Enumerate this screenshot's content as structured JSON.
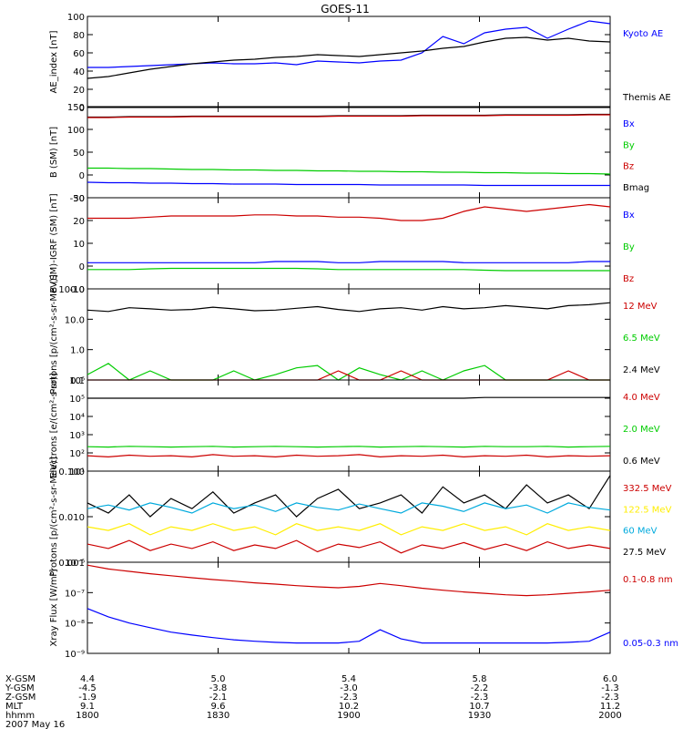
{
  "title": "GOES-11",
  "chart_data": [
    {
      "type": "line",
      "ylabel": "AE_index [nT]",
      "ylim": [
        0,
        100
      ],
      "yticks": [
        "0",
        "20",
        "40",
        "60",
        "80",
        "100"
      ],
      "legend": [
        {
          "name": "Kyoto AE",
          "color": "#0000ff"
        },
        {
          "name": "Themis AE",
          "color": "#000000"
        }
      ],
      "series": [
        {
          "name": "Kyoto AE",
          "color": "#0000ff",
          "values": [
            44,
            44,
            45,
            46,
            47,
            48,
            49,
            48,
            48,
            49,
            47,
            51,
            50,
            49,
            51,
            52,
            60,
            78,
            70,
            82,
            86,
            88,
            76,
            86,
            95,
            92
          ]
        },
        {
          "name": "Themis AE",
          "color": "#000000",
          "values": [
            32,
            34,
            38,
            42,
            45,
            48,
            50,
            52,
            53,
            55,
            56,
            58,
            57,
            56,
            58,
            60,
            62,
            65,
            67,
            72,
            76,
            77,
            74,
            76,
            73,
            72
          ]
        }
      ]
    },
    {
      "type": "line",
      "ylabel": "B (SM) [nT]",
      "ylim": [
        -50,
        150
      ],
      "yticks": [
        "-50",
        "0",
        "50",
        "100",
        "150"
      ],
      "legend": [
        {
          "name": "Bx",
          "color": "#0000ff"
        },
        {
          "name": "By",
          "color": "#00cc00"
        },
        {
          "name": "Bz",
          "color": "#cc0000"
        },
        {
          "name": "Bmag",
          "color": "#000000"
        }
      ],
      "series": [
        {
          "name": "Bmag",
          "color": "#000000",
          "values": [
            127,
            127,
            128,
            128,
            128,
            129,
            129,
            129,
            129,
            129,
            129,
            129,
            130,
            130,
            130,
            130,
            131,
            131,
            131,
            131,
            132,
            132,
            132,
            132,
            133,
            133
          ]
        },
        {
          "name": "Bz",
          "color": "#cc0000",
          "values": [
            126,
            126,
            127,
            127,
            127,
            128,
            128,
            128,
            128,
            128,
            128,
            128,
            129,
            129,
            129,
            129,
            130,
            130,
            130,
            130,
            131,
            131,
            131,
            131,
            132,
            132
          ]
        },
        {
          "name": "By",
          "color": "#00cc00",
          "values": [
            15,
            15,
            14,
            14,
            13,
            12,
            12,
            11,
            11,
            10,
            10,
            9,
            9,
            8,
            8,
            7,
            7,
            6,
            6,
            5,
            5,
            4,
            4,
            3,
            3,
            2
          ]
        },
        {
          "name": "Bx",
          "color": "#0000ff",
          "values": [
            -16,
            -17,
            -17,
            -18,
            -18,
            -19,
            -19,
            -20,
            -20,
            -20,
            -21,
            -21,
            -21,
            -21,
            -22,
            -22,
            -22,
            -22,
            -22,
            -23,
            -23,
            -23,
            -23,
            -23,
            -23,
            -23
          ]
        }
      ]
    },
    {
      "type": "line",
      "ylabel": "B (SM)-IGRF (SM) [nT]",
      "ylim": [
        -10,
        30
      ],
      "yticks": [
        "-10",
        "0",
        "10",
        "20",
        "30"
      ],
      "legend": [
        {
          "name": "Bx",
          "color": "#0000ff"
        },
        {
          "name": "By",
          "color": "#00cc00"
        },
        {
          "name": "Bz",
          "color": "#cc0000"
        }
      ],
      "series": [
        {
          "name": "Bz",
          "color": "#cc0000",
          "values": [
            21,
            21,
            21,
            21.5,
            22,
            22,
            22,
            22,
            22.5,
            22.5,
            22,
            22,
            21.5,
            21.5,
            21,
            20,
            20,
            21,
            24,
            26,
            25,
            24,
            25,
            26,
            27,
            26
          ]
        },
        {
          "name": "Bx",
          "color": "#0000ff",
          "values": [
            1.5,
            1.5,
            1.5,
            1.5,
            1.5,
            1.5,
            1.5,
            1.5,
            1.5,
            2,
            2,
            2,
            1.5,
            1.5,
            2,
            2,
            2,
            2,
            1.5,
            1.5,
            1.5,
            1.5,
            1.5,
            1.5,
            2,
            2
          ]
        },
        {
          "name": "By",
          "color": "#00cc00",
          "values": [
            -1.5,
            -1.5,
            -1.5,
            -1.2,
            -1,
            -1,
            -1,
            -1,
            -1,
            -1,
            -1,
            -1.2,
            -1.5,
            -1.5,
            -1.5,
            -1.5,
            -1.5,
            -1.5,
            -1.5,
            -1.8,
            -2,
            -2,
            -2,
            -2,
            -2,
            -2
          ]
        }
      ]
    },
    {
      "type": "line",
      "scale": "log",
      "ylabel": "Protons [p/(cm²-s-sr-MeV)]",
      "ylim": [
        0.1,
        100
      ],
      "yticks": [
        "0.1",
        "1.0",
        "10.0",
        "100.0"
      ],
      "legend": [
        {
          "name": "12 MeV",
          "color": "#cc0000"
        },
        {
          "name": "6.5 MeV",
          "color": "#00cc00"
        },
        {
          "name": "2.4 MeV",
          "color": "#000000"
        }
      ],
      "series": [
        {
          "name": "2.4 MeV",
          "color": "#000000",
          "values": [
            20,
            18,
            24,
            22,
            20,
            21,
            25,
            22,
            19,
            20,
            23,
            26,
            21,
            18,
            22,
            24,
            20,
            26,
            22,
            24,
            28,
            25,
            22,
            28,
            30,
            35
          ]
        },
        {
          "name": "6.5 MeV",
          "color": "#00cc00",
          "values": [
            0.15,
            0.35,
            0.1,
            0.2,
            0.1,
            0.1,
            0.1,
            0.2,
            0.1,
            0.15,
            0.25,
            0.3,
            0.1,
            0.25,
            0.15,
            0.1,
            0.2,
            0.1,
            0.2,
            0.3,
            0.1,
            0.1,
            0.1,
            0.1,
            0.1,
            0.1
          ]
        },
        {
          "name": "12 MeV",
          "color": "#cc0000",
          "values": [
            0.1,
            0.1,
            0.1,
            0.1,
            0.1,
            0.1,
            0.1,
            0.1,
            0.1,
            0.1,
            0.1,
            0.1,
            0.2,
            0.1,
            0.1,
            0.2,
            0.1,
            0.1,
            0.1,
            0.1,
            0.1,
            0.1,
            0.1,
            0.2,
            0.1,
            0.1
          ]
        }
      ]
    },
    {
      "type": "line",
      "scale": "log",
      "ylabel": "Electrons [e/(cm²-s-sr)]",
      "ylim": [
        10,
        1000000
      ],
      "yticks": [
        "10¹",
        "10²",
        "10³",
        "10⁴",
        "10⁵",
        "10⁶"
      ],
      "legend": [
        {
          "name": "4.0 MeV",
          "color": "#cc0000"
        },
        {
          "name": "2.0 MeV",
          "color": "#00cc00"
        },
        {
          "name": "0.6 MeV",
          "color": "#000000"
        }
      ],
      "series": [
        {
          "name": "0.6 MeV",
          "color": "#000000",
          "values": [
            100000,
            100000,
            100000,
            100000,
            100000,
            100000,
            100000,
            100000,
            100000,
            100000,
            100000,
            100000,
            100000,
            100000,
            100000,
            100000,
            100000,
            100000,
            100000,
            110000,
            110000,
            110000,
            110000,
            110000,
            110000,
            110000
          ]
        },
        {
          "name": "2.0 MeV",
          "color": "#00cc00",
          "values": [
            220,
            210,
            230,
            220,
            210,
            220,
            230,
            210,
            220,
            230,
            220,
            210,
            220,
            230,
            210,
            220,
            230,
            220,
            210,
            230,
            220,
            220,
            230,
            210,
            220,
            230
          ]
        },
        {
          "name": "4.0 MeV",
          "color": "#cc0000",
          "values": [
            70,
            60,
            75,
            65,
            70,
            60,
            80,
            65,
            70,
            60,
            75,
            65,
            70,
            80,
            60,
            70,
            65,
            75,
            60,
            70,
            65,
            75,
            60,
            70,
            65,
            70
          ]
        }
      ]
    },
    {
      "type": "line",
      "scale": "log",
      "ylabel": "Protons [p/(cm²-s-sr-MeV)]",
      "ylim": [
        0.001,
        0.1
      ],
      "yticks": [
        "0.001",
        "0.010",
        "0.100"
      ],
      "legend": [
        {
          "name": "332.5 MeV",
          "color": "#cc0000"
        },
        {
          "name": "122.5 MeV",
          "color": "#ffee00"
        },
        {
          "name": "60 MeV",
          "color": "#00aadd"
        },
        {
          "name": "27.5 MeV",
          "color": "#000000"
        }
      ],
      "series": [
        {
          "name": "27.5 MeV",
          "color": "#000000",
          "values": [
            0.02,
            0.012,
            0.03,
            0.01,
            0.025,
            0.015,
            0.035,
            0.012,
            0.02,
            0.03,
            0.01,
            0.025,
            0.04,
            0.015,
            0.02,
            0.03,
            0.012,
            0.045,
            0.02,
            0.03,
            0.015,
            0.05,
            0.02,
            0.03,
            0.015,
            0.08
          ]
        },
        {
          "name": "60 MeV",
          "color": "#00aadd",
          "values": [
            0.015,
            0.018,
            0.014,
            0.02,
            0.016,
            0.012,
            0.02,
            0.015,
            0.018,
            0.013,
            0.02,
            0.016,
            0.014,
            0.019,
            0.015,
            0.012,
            0.02,
            0.017,
            0.013,
            0.02,
            0.015,
            0.018,
            0.012,
            0.02,
            0.016,
            0.014
          ]
        },
        {
          "name": "122.5 MeV",
          "color": "#ffee00",
          "values": [
            0.006,
            0.005,
            0.007,
            0.004,
            0.006,
            0.005,
            0.007,
            0.005,
            0.006,
            0.004,
            0.007,
            0.005,
            0.006,
            0.005,
            0.007,
            0.004,
            0.006,
            0.005,
            0.007,
            0.005,
            0.006,
            0.004,
            0.007,
            0.005,
            0.006,
            0.005
          ]
        },
        {
          "name": "332.5 MeV",
          "color": "#cc0000",
          "values": [
            0.0025,
            0.002,
            0.003,
            0.0018,
            0.0025,
            0.002,
            0.0028,
            0.0018,
            0.0024,
            0.002,
            0.003,
            0.0017,
            0.0025,
            0.0021,
            0.0028,
            0.0016,
            0.0024,
            0.002,
            0.0027,
            0.0019,
            0.0025,
            0.0018,
            0.0028,
            0.002,
            0.0024,
            0.002
          ]
        }
      ]
    },
    {
      "type": "line",
      "scale": "log",
      "ylabel": "Xray Flux [W/m²]",
      "ylim": [
        1e-09,
        1e-06
      ],
      "yticks": [
        "10⁻⁹",
        "10⁻⁸",
        "10⁻⁷",
        "10⁻⁶"
      ],
      "legend": [
        {
          "name": "0.1-0.8 nm",
          "color": "#cc0000"
        },
        {
          "name": "0.05-0.3 nm",
          "color": "#0000ff"
        }
      ],
      "series": [
        {
          "name": "0.1-0.8 nm",
          "color": "#cc0000",
          "values": [
            8e-07,
            6e-07,
            5e-07,
            4.2e-07,
            3.6e-07,
            3.1e-07,
            2.7e-07,
            2.4e-07,
            2.1e-07,
            1.9e-07,
            1.7e-07,
            1.55e-07,
            1.45e-07,
            1.6e-07,
            2e-07,
            1.7e-07,
            1.4e-07,
            1.2e-07,
            1.05e-07,
            9.5e-08,
            8.5e-08,
            8e-08,
            8.5e-08,
            9.5e-08,
            1.05e-07,
            1.2e-07
          ]
        },
        {
          "name": "0.05-0.3 nm",
          "color": "#0000ff",
          "values": [
            3e-08,
            1.6e-08,
            1e-08,
            7e-09,
            5e-09,
            4e-09,
            3.3e-09,
            2.8e-09,
            2.5e-09,
            2.3e-09,
            2.2e-09,
            2.2e-09,
            2.2e-09,
            2.5e-09,
            6e-09,
            3e-09,
            2.2e-09,
            2.2e-09,
            2.2e-09,
            2.2e-09,
            2.2e-09,
            2.2e-09,
            2.2e-09,
            2.3e-09,
            2.5e-09,
            5e-09
          ]
        }
      ]
    }
  ],
  "xaxis": {
    "row_labels": [
      "X-GSM",
      "Y-GSM",
      "Z-GSM",
      "MLT",
      "hhmm",
      "2007 May 16"
    ],
    "columns": [
      {
        "x_gsm": "4.4",
        "y_gsm": "-4.5",
        "z_gsm": "-1.9",
        "mlt": "9.1",
        "hhmm": "1800"
      },
      {
        "x_gsm": "5.0",
        "y_gsm": "-3.8",
        "z_gsm": "-2.1",
        "mlt": "9.6",
        "hhmm": "1830"
      },
      {
        "x_gsm": "5.4",
        "y_gsm": "-3.0",
        "z_gsm": "-2.3",
        "mlt": "10.2",
        "hhmm": "1900"
      },
      {
        "x_gsm": "5.8",
        "y_gsm": "-2.2",
        "z_gsm": "-2.3",
        "mlt": "10.7",
        "hhmm": "1930"
      },
      {
        "x_gsm": "6.0",
        "y_gsm": "-1.3",
        "z_gsm": "-2.3",
        "mlt": "11.2",
        "hhmm": "2000"
      }
    ]
  }
}
